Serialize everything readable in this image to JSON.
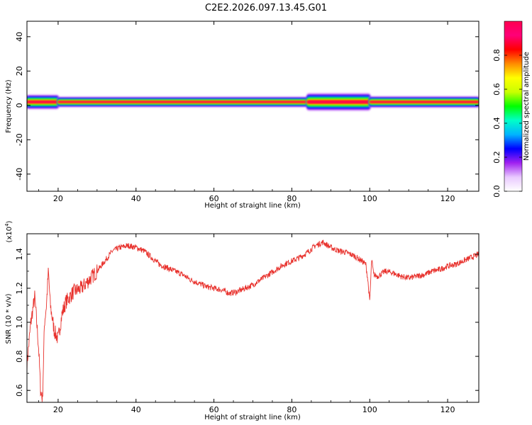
{
  "title": "C2E2.2026.097.13.45.G01",
  "chart_data": [
    {
      "type": "heatmap",
      "xlabel": "Height of straight line (km)",
      "ylabel": "Frequency (Hz)",
      "xlim": [
        12,
        128
      ],
      "ylim": [
        -50,
        49
      ],
      "xticks": [
        20,
        40,
        60,
        80,
        100,
        120
      ],
      "yticks": [
        -40,
        -20,
        0,
        20,
        40
      ],
      "colorbar": {
        "label": "Normalized spectral amplitude",
        "range": [
          0,
          1
        ],
        "ticks": [
          "0.0",
          "0.2",
          "0.4",
          "0.6",
          "0.8"
        ],
        "colors": [
          "#ffffff",
          "#e9c9ff",
          "#a020f0",
          "#0000ff",
          "#00b4ff",
          "#00ffc8",
          "#00ff00",
          "#c8ff00",
          "#ffff00",
          "#ff8c00",
          "#ff0000",
          "#ff0078",
          "#ff0050"
        ]
      },
      "ridge": {
        "center_hz": 2,
        "bands": [
          {
            "x": [
              12,
              20
            ],
            "halfwidth_hz": 4.5
          },
          {
            "x": [
              20,
              84
            ],
            "halfwidth_hz": 3.2
          },
          {
            "x": [
              84,
              100
            ],
            "halfwidth_hz": 5.5
          },
          {
            "x": [
              100,
              128
            ],
            "halfwidth_hz": 3.5
          }
        ]
      }
    },
    {
      "type": "line",
      "xlabel": "Height of straight line (km)",
      "ylabel": "SNR (10 * v/v)",
      "scale_note": "(x10^4)",
      "xlim": [
        12,
        128
      ],
      "ylim": [
        0.53,
        1.52
      ],
      "xticks": [
        20,
        40,
        60,
        80,
        100,
        120
      ],
      "yticks": [
        "0.6",
        "0.8",
        "1.0",
        "1.2",
        "1.4"
      ],
      "color": "#e8322d",
      "series": [
        {
          "x": [
            12,
            13,
            14,
            15,
            15.5,
            16,
            16.5,
            17,
            17.5,
            18,
            19,
            20,
            21,
            22,
            24,
            26,
            28,
            30,
            32,
            34,
            36,
            38,
            40,
            42,
            44,
            46,
            48,
            50,
            52,
            54,
            56,
            58,
            60,
            62,
            64,
            66,
            68,
            70,
            72,
            74,
            76,
            78,
            80,
            82,
            84,
            86,
            88,
            90,
            92,
            94,
            96,
            98,
            99,
            99.5,
            100,
            100.5,
            101,
            102,
            104,
            106,
            108,
            110,
            112,
            114,
            116,
            118,
            120,
            122,
            124,
            126,
            128
          ],
          "y": [
            0.75,
            1.0,
            1.15,
            0.85,
            0.6,
            0.55,
            1.0,
            1.1,
            1.3,
            1.1,
            0.95,
            0.9,
            1.05,
            1.12,
            1.18,
            1.2,
            1.25,
            1.3,
            1.36,
            1.42,
            1.44,
            1.45,
            1.44,
            1.42,
            1.38,
            1.34,
            1.32,
            1.3,
            1.28,
            1.25,
            1.23,
            1.21,
            1.2,
            1.19,
            1.17,
            1.18,
            1.2,
            1.22,
            1.25,
            1.28,
            1.31,
            1.34,
            1.36,
            1.38,
            1.41,
            1.45,
            1.47,
            1.44,
            1.42,
            1.41,
            1.39,
            1.36,
            1.34,
            1.25,
            1.12,
            1.37,
            1.28,
            1.27,
            1.3,
            1.29,
            1.27,
            1.26,
            1.27,
            1.28,
            1.3,
            1.31,
            1.33,
            1.34,
            1.36,
            1.38,
            1.4
          ]
        }
      ]
    }
  ]
}
